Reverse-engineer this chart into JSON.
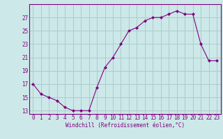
{
  "x": [
    0,
    1,
    2,
    3,
    4,
    5,
    6,
    7,
    8,
    9,
    10,
    11,
    12,
    13,
    14,
    15,
    16,
    17,
    18,
    19,
    20,
    21,
    22,
    23
  ],
  "y": [
    17,
    15.5,
    15,
    14.5,
    13.5,
    13,
    13,
    13,
    16.5,
    19.5,
    21,
    23,
    25,
    25.5,
    26.5,
    27,
    27,
    27.5,
    28,
    27.5,
    27.5,
    23,
    20.5,
    20.5
  ],
  "line_color": "#800080",
  "marker": "D",
  "marker_size": 2,
  "bg_color": "#cce8e8",
  "grid_color": "#aacccc",
  "xlabel": "Windchill (Refroidissement éolien,°C)",
  "ylabel": "",
  "yticks": [
    13,
    15,
    17,
    19,
    21,
    23,
    25,
    27
  ],
  "xticks": [
    0,
    1,
    2,
    3,
    4,
    5,
    6,
    7,
    8,
    9,
    10,
    11,
    12,
    13,
    14,
    15,
    16,
    17,
    18,
    19,
    20,
    21,
    22,
    23
  ],
  "ylim": [
    12.5,
    29
  ],
  "xlim": [
    -0.5,
    23.5
  ],
  "tick_fontsize": 5.5,
  "xlabel_fontsize": 5.5
}
